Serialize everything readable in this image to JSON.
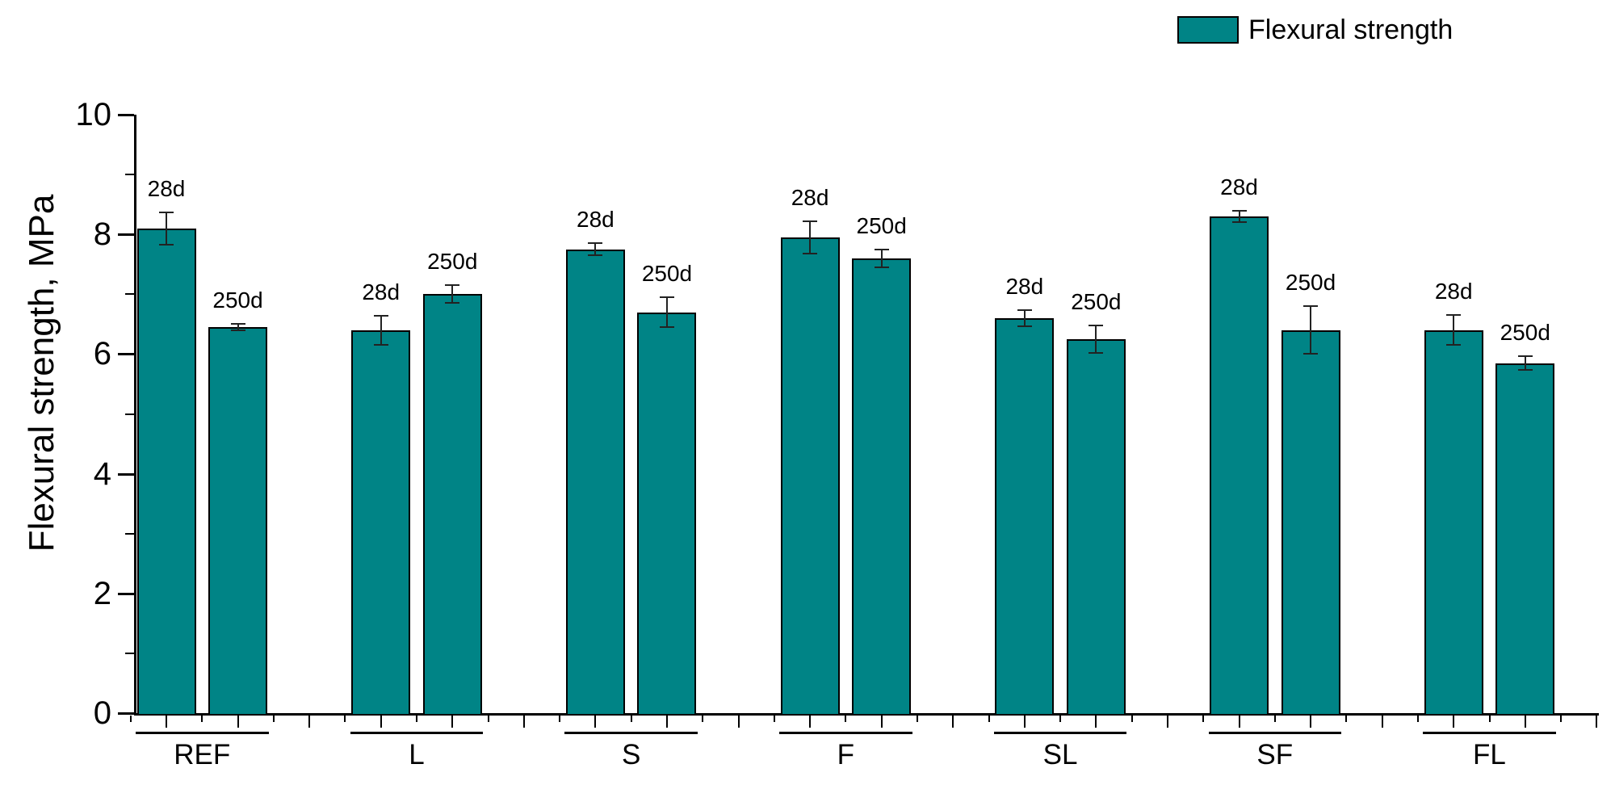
{
  "chart_data": {
    "type": "bar",
    "title": "",
    "ylabel": "Flexural strength, MPa",
    "xlabel": "",
    "ylim": [
      0,
      10
    ],
    "yticks_major": [
      0,
      2,
      4,
      6,
      8,
      10
    ],
    "yticks_minor": [
      1,
      3,
      5,
      7,
      9
    ],
    "grid": false,
    "legend": {
      "label": "Flexural strength",
      "position": "top-right"
    },
    "colors": {
      "bar_fill": "#008486",
      "bar_border": "#000000",
      "error_bar": "#222222",
      "axis": "#000000"
    },
    "categories": [
      "REF",
      "L",
      "S",
      "F",
      "SL",
      "SF",
      "FL"
    ],
    "series_labels": [
      "28d",
      "250d"
    ],
    "groups": [
      {
        "category": "REF",
        "bars": [
          {
            "label": "28d",
            "value": 8.1,
            "error": 0.27
          },
          {
            "label": "250d",
            "value": 6.45,
            "error": 0.05
          }
        ]
      },
      {
        "category": "L",
        "bars": [
          {
            "label": "28d",
            "value": 6.4,
            "error": 0.24
          },
          {
            "label": "250d",
            "value": 7.0,
            "error": 0.15
          }
        ]
      },
      {
        "category": "S",
        "bars": [
          {
            "label": "28d",
            "value": 7.75,
            "error": 0.1
          },
          {
            "label": "250d",
            "value": 6.7,
            "error": 0.25
          }
        ]
      },
      {
        "category": "F",
        "bars": [
          {
            "label": "28d",
            "value": 7.95,
            "error": 0.27
          },
          {
            "label": "250d",
            "value": 7.6,
            "error": 0.15
          }
        ]
      },
      {
        "category": "SL",
        "bars": [
          {
            "label": "28d",
            "value": 6.6,
            "error": 0.13
          },
          {
            "label": "250d",
            "value": 6.25,
            "error": 0.23
          }
        ]
      },
      {
        "category": "SF",
        "bars": [
          {
            "label": "28d",
            "value": 8.3,
            "error": 0.1
          },
          {
            "label": "250d",
            "value": 6.4,
            "error": 0.4
          }
        ]
      },
      {
        "category": "FL",
        "bars": [
          {
            "label": "28d",
            "value": 6.4,
            "error": 0.25
          },
          {
            "label": "250d",
            "value": 5.85,
            "error": 0.12
          }
        ]
      }
    ]
  }
}
